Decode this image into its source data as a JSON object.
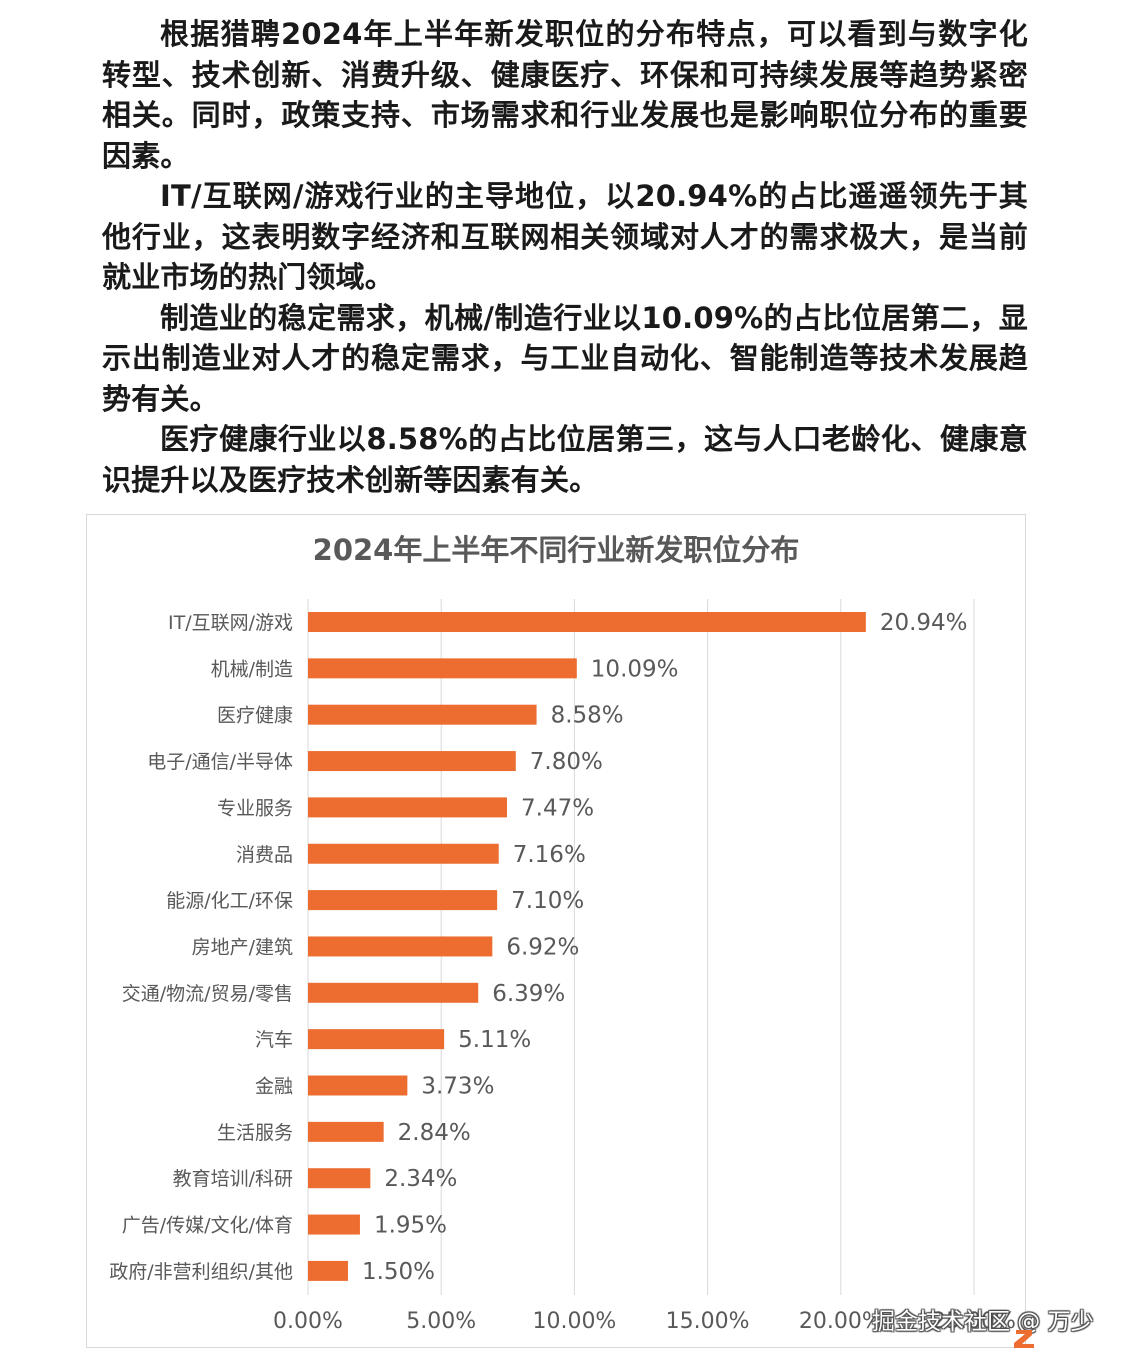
{
  "article": {
    "paragraphs": [
      "根据猎聘2024年上半年新发职位的分布特点，可以看到与数字化转型、技术创新、消费升级、健康医疗、环保和可持续发展等趋势紧密相关。同时，政策支持、市场需求和行业发展也是影响职位分布的重要因素。",
      "IT/互联网/游戏行业的主导地位，以20.94%的占比遥遥领先于其他行业，这表明数字经济和互联网相关领域对人才的需求极大，是当前就业市场的热门领域。",
      "制造业的稳定需求，机械/制造行业以10.09%的占比位居第二，显示出制造业对人才的稳定需求，与工业自动化、智能制造等技术发展趋势有关。",
      "医疗健康行业以8.58%的占比位居第三，这与人口老龄化、健康意识提升以及医疗技术创新等因素有关。"
    ]
  },
  "chart_data": {
    "type": "bar",
    "orientation": "horizontal",
    "title": "2024年上半年不同行业新发职位分布",
    "categories": [
      "IT/互联网/游戏",
      "机械/制造",
      "医疗健康",
      "电子/通信/半导体",
      "专业服务",
      "消费品",
      "能源/化工/环保",
      "房地产/建筑",
      "交通/物流/贸易/零售",
      "汽车",
      "金融",
      "生活服务",
      "教育培训/科研",
      "广告/传媒/文化/体育",
      "政府/非营利组织/其他"
    ],
    "values": [
      20.94,
      10.09,
      8.58,
      7.8,
      7.47,
      7.16,
      7.1,
      6.92,
      6.39,
      5.11,
      3.73,
      2.84,
      2.34,
      1.95,
      1.5
    ],
    "data_labels": [
      "20.94%",
      "10.09%",
      "8.58%",
      "7.80%",
      "7.47%",
      "7.16%",
      "7.10%",
      "6.92%",
      "6.39%",
      "5.11%",
      "3.73%",
      "2.84%",
      "2.34%",
      "1.95%",
      "1.50%"
    ],
    "x_ticks": [
      "0.00%",
      "5.00%",
      "10.00%",
      "15.00%",
      "20.00%",
      "25.00%"
    ],
    "xlim": [
      0,
      25
    ],
    "grid": "vertical",
    "legend": "none",
    "bar_color": "#ed6d31",
    "gridline_color": "#d9d9d9"
  },
  "watermark": "掘金技术社区 @ 万少",
  "colors": {
    "text": "#1a1a1a",
    "chart_title": "#595959",
    "axis_text": "#595959",
    "corner_mark": "#ed6d31"
  }
}
